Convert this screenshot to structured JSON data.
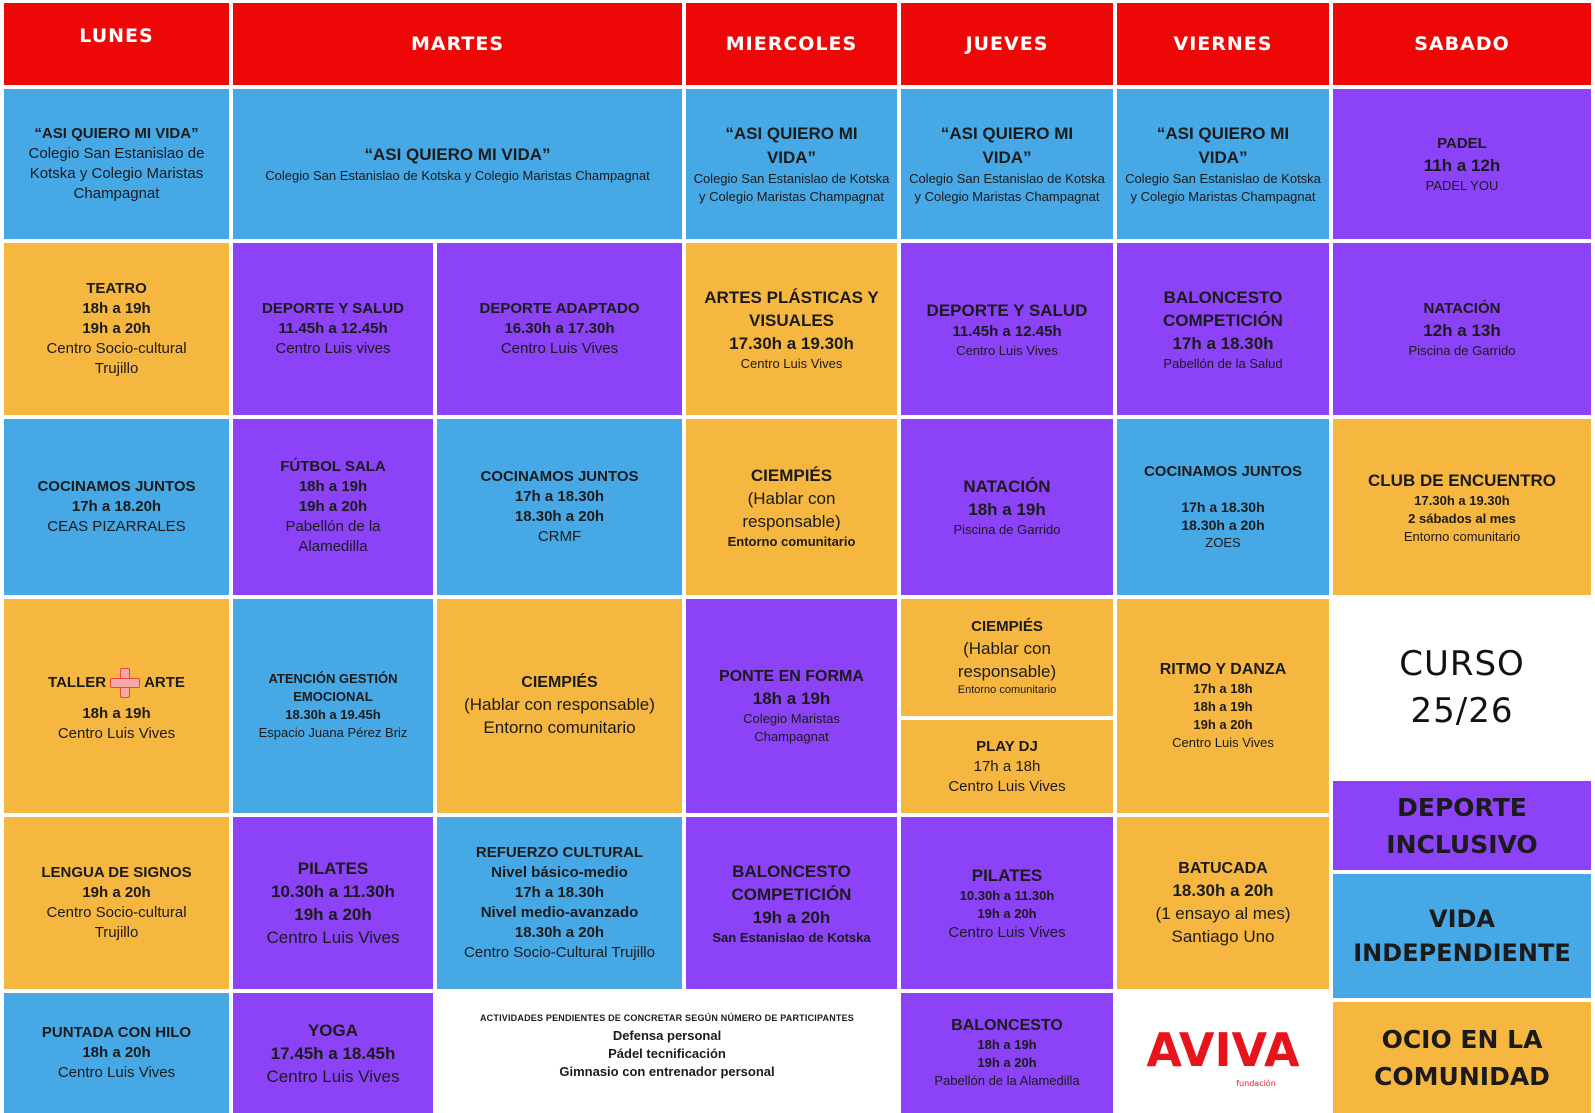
{
  "headers": {
    "lunes": "LUNES",
    "martes": "MARTES",
    "miercoles": "MIERCOLES",
    "jueves": "JUEVES",
    "viernes": "VIERNES",
    "sabado": "SABADO"
  },
  "row1": {
    "lunes": {
      "title": "“ASI QUIERO MI VIDA”",
      "place": "Colegio San Estanislao de Kotska y Colegio Maristas Champagnat"
    },
    "martes": {
      "title": "“ASI QUIERO MI VIDA”",
      "place": "Colegio San Estanislao de Kotska y Colegio Maristas Champagnat"
    },
    "miercoles": {
      "title": "“ASI QUIERO MI VIDA”",
      "place": "Colegio San Estanislao de Kotska y Colegio Maristas Champagnat"
    },
    "jueves": {
      "title": "“ASI QUIERO MI VIDA”",
      "place": "Colegio San Estanislao de Kotska y Colegio Maristas Champagnat"
    },
    "viernes": {
      "title": "“ASI QUIERO MI VIDA”",
      "place": "Colegio San Estanislao de Kotska y Colegio Maristas Champagnat"
    },
    "sabado": {
      "title": "PADEL",
      "time": "11h a 12h",
      "place": "PADEL YOU"
    }
  },
  "row2": {
    "lunes": {
      "title": "TEATRO",
      "time1": "18h a 19h",
      "time2": "19h a 20h",
      "place": "Centro Socio-cultural Trujillo"
    },
    "martes_a": {
      "title": "DEPORTE Y SALUD",
      "time": "11.45h a 12.45h",
      "place": "Centro Luis vives"
    },
    "martes_b": {
      "title": "DEPORTE ADAPTADO",
      "time": "16.30h a 17.30h",
      "place": "Centro Luis Vives"
    },
    "miercoles": {
      "title": "ARTES PLÁSTICAS Y VISUALES",
      "time": "17.30h a 19.30h",
      "place": "Centro Luis Vives"
    },
    "jueves": {
      "title": "DEPORTE Y SALUD",
      "time": "11.45h a 12.45h",
      "place": "Centro Luis Vives"
    },
    "viernes": {
      "title": "BALONCESTO COMPETICIÓN",
      "time": "17h a 18.30h",
      "place": "Pabellón de la Salud"
    },
    "sabado": {
      "title": "NATACIÓN",
      "time": "12h a 13h",
      "place": "Piscina de Garrido"
    }
  },
  "row3": {
    "lunes": {
      "title": "COCINAMOS JUNTOS",
      "time": "17h a 18.20h",
      "place": "CEAS PIZARRALES"
    },
    "martes_a": {
      "title": "FÚTBOL SALA",
      "time1": "18h a 19h",
      "time2": "19h a 20h",
      "place": "Pabellón de la Alamedilla"
    },
    "martes_b": {
      "title": "COCINAMOS JUNTOS",
      "time1": "17h a 18.30h",
      "time2": "18.30h a 20h",
      "place": "CRMF"
    },
    "miercoles": {
      "title": "CIEMPIÉS",
      "note": "(Hablar con responsable)",
      "place": "Entorno comunitario"
    },
    "jueves": {
      "title": "NATACIÓN",
      "time": "18h a 19h",
      "place": "Piscina de Garrido"
    },
    "viernes": {
      "title": "COCINAMOS JUNTOS",
      "time1": "17h a 18.30h",
      "time2": "18.30h a 20h",
      "place": "ZOES"
    },
    "sabado": {
      "title": "CLUB DE ENCUENTRO",
      "time": "17.30h a 19.30h",
      "freq": "2 sábados al mes",
      "place": "Entorno comunitario"
    }
  },
  "row4": {
    "lunes": {
      "title_a": "TALLER",
      "title_b": "ARTE",
      "time": "18h a 19h",
      "place": "Centro Luis Vives"
    },
    "martes_a": {
      "title": "ATENCIÓN  GESTIÓN EMOCIONAL",
      "time": "18.30h a 19.45h",
      "place": "Espacio Juana Pérez Briz"
    },
    "martes_b": {
      "title": "CIEMPIÉS",
      "note": "(Hablar con responsable)",
      "place": "Entorno comunitario"
    },
    "miercoles": {
      "title": "PONTE EN FORMA",
      "time": "18h a 19h",
      "place": "Colegio Maristas Champagnat"
    },
    "jueves_a": {
      "title": "CIEMPIÉS",
      "note": "(Hablar con responsable)",
      "place": "Entorno comunitario"
    },
    "jueves_b": {
      "title": "PLAY DJ",
      "time": "17h a 18h",
      "place": "Centro Luis Vives"
    },
    "viernes": {
      "title": "RITMO Y DANZA",
      "time1": "17h a 18h",
      "time2": "18h a 19h",
      "time3": "19h a 20h",
      "place": "Centro Luis Vives"
    }
  },
  "row5": {
    "lunes": {
      "title": "LENGUA DE SIGNOS",
      "time": "19h a 20h",
      "place": "Centro Socio-cultural Trujillo"
    },
    "martes_a": {
      "title": "PILATES",
      "time1": "10.30h a 11.30h",
      "time2": "19h a 20h",
      "place": "Centro Luis Vives"
    },
    "martes_b": {
      "title": "REFUERZO CULTURAL",
      "level1": "Nivel básico-medio",
      "time1": "17h a 18.30h",
      "level2": "Nivel medio-avanzado",
      "time2": "18.30h a 20h",
      "place": "Centro Socio-Cultural Trujillo"
    },
    "miercoles": {
      "title": "BALONCESTO COMPETICIÓN",
      "time": "19h a 20h",
      "place": "San Estanislao de Kotska"
    },
    "jueves": {
      "title": "PILATES",
      "time1": "10.30h a 11.30h",
      "time2": "19h a 20h",
      "place": "Centro Luis Vives"
    },
    "viernes": {
      "title": "BATUCADA",
      "time": "18.30h a 20h",
      "note": "(1 ensayo al mes)",
      "place": "Santiago Uno"
    }
  },
  "row6": {
    "lunes": {
      "title": "PUNTADA CON HILO",
      "time": "18h a 20h",
      "place": "Centro Luis Vives"
    },
    "martes_a": {
      "title": "YOGA",
      "time": "17.45h a 18.45h",
      "place": "Centro Luis Vives"
    },
    "pending": {
      "title": "ACTIVIDADES PENDIENTES DE CONCRETAR SEGÚN NÚMERO DE PARTICIPANTES",
      "items": [
        "Defensa personal",
        "Pádel tecnificación",
        "Gimnasio con entrenador personal"
      ]
    },
    "jueves": {
      "title": "BALONCESTO",
      "time1": "18h a 19h",
      "time2": "19h a 20h",
      "place": "Pabellón de la Alamedilla"
    },
    "logo": {
      "text": "AVIVA",
      "sub": "fundación"
    }
  },
  "legend": {
    "curso_a": "CURSO",
    "curso_b": "25/26",
    "deporte": "DEPORTE INCLUSIVO",
    "vida": "VIDA INDEPENDIENTE",
    "ocio": "OCIO EN LA COMUNIDAD"
  },
  "colors": {
    "header_red": "#ee0707",
    "blue": "#47a8e6",
    "purple": "#8c42f7",
    "orange": "#f6b741"
  }
}
